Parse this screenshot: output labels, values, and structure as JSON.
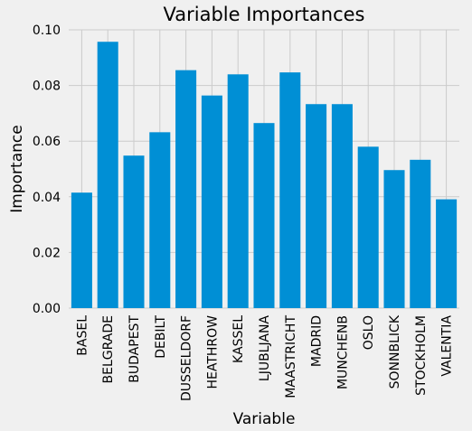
{
  "chart_data": {
    "type": "bar",
    "title": "Variable Importances",
    "xlabel": "Variable",
    "ylabel": "Importance",
    "categories": [
      "BASEL",
      "BELGRADE",
      "BUDAPEST",
      "DEBILT",
      "DUSSELDORF",
      "HEATHROW",
      "KASSEL",
      "LJUBLJANA",
      "MAASTRICHT",
      "MADRID",
      "MUNCHENB",
      "OSLO",
      "SONNBLICK",
      "STOCKHOLM",
      "VALENTIA"
    ],
    "values": [
      0.0415,
      0.0957,
      0.0548,
      0.0632,
      0.0855,
      0.0764,
      0.084,
      0.0665,
      0.0847,
      0.0733,
      0.0733,
      0.058,
      0.0496,
      0.0533,
      0.0391
    ],
    "ylim": [
      0,
      0.1
    ],
    "yticks": [
      "0.00",
      "0.02",
      "0.04",
      "0.06",
      "0.08",
      "0.10"
    ],
    "grid": true,
    "legend": "none",
    "colors": {
      "bar": "#008fd5",
      "grid": "#cbcbcb",
      "background": "#f0f0f0"
    }
  }
}
